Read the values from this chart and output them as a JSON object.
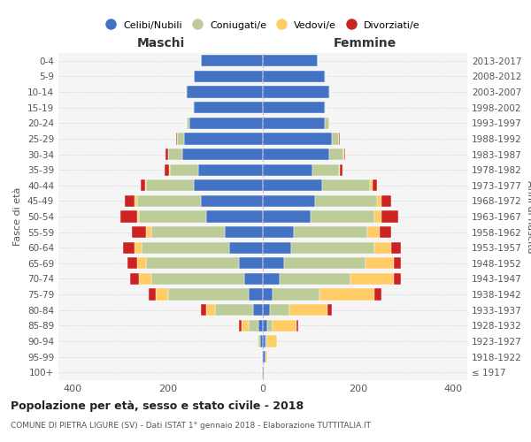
{
  "age_groups": [
    "100+",
    "95-99",
    "90-94",
    "85-89",
    "80-84",
    "75-79",
    "70-74",
    "65-69",
    "60-64",
    "55-59",
    "50-54",
    "45-49",
    "40-44",
    "35-39",
    "30-34",
    "25-29",
    "20-24",
    "15-19",
    "10-14",
    "5-9",
    "0-4"
  ],
  "birth_years": [
    "≤ 1917",
    "1918-1922",
    "1923-1927",
    "1928-1932",
    "1933-1937",
    "1938-1942",
    "1943-1947",
    "1948-1952",
    "1953-1957",
    "1958-1962",
    "1963-1967",
    "1968-1972",
    "1973-1977",
    "1978-1982",
    "1983-1987",
    "1988-1992",
    "1993-1997",
    "1998-2002",
    "2003-2007",
    "2008-2012",
    "2013-2017"
  ],
  "males": {
    "celibi": [
      2,
      2,
      5,
      10,
      20,
      30,
      40,
      50,
      70,
      80,
      120,
      130,
      145,
      135,
      170,
      165,
      155,
      145,
      160,
      145,
      130
    ],
    "coniugati": [
      0,
      0,
      5,
      20,
      80,
      170,
      195,
      195,
      185,
      155,
      140,
      135,
      100,
      60,
      30,
      15,
      5,
      2,
      2,
      0,
      0
    ],
    "vedovi": [
      0,
      0,
      2,
      15,
      20,
      25,
      25,
      20,
      15,
      10,
      5,
      5,
      2,
      2,
      0,
      0,
      0,
      0,
      0,
      0,
      0
    ],
    "divorziati": [
      0,
      0,
      0,
      5,
      10,
      15,
      20,
      20,
      25,
      30,
      35,
      20,
      10,
      10,
      5,
      2,
      0,
      0,
      0,
      0,
      0
    ]
  },
  "females": {
    "nubili": [
      2,
      5,
      5,
      10,
      15,
      20,
      35,
      45,
      60,
      65,
      100,
      110,
      125,
      105,
      140,
      145,
      130,
      130,
      140,
      130,
      115
    ],
    "coniugate": [
      0,
      0,
      5,
      10,
      40,
      100,
      150,
      170,
      175,
      155,
      135,
      130,
      100,
      55,
      30,
      15,
      10,
      2,
      2,
      2,
      0
    ],
    "vedove": [
      2,
      5,
      20,
      50,
      80,
      115,
      90,
      60,
      35,
      25,
      15,
      10,
      5,
      2,
      2,
      0,
      0,
      0,
      0,
      0,
      0
    ],
    "divorziate": [
      0,
      0,
      0,
      5,
      10,
      15,
      15,
      15,
      20,
      25,
      35,
      20,
      10,
      5,
      2,
      2,
      0,
      0,
      0,
      0,
      0
    ]
  },
  "colors": {
    "celibi_nubili": "#4472C4",
    "coniugati": "#BBCC99",
    "vedovi": "#FFCC66",
    "divorziati": "#CC2222"
  },
  "title": "Popolazione per età, sesso e stato civile - 2018",
  "subtitle": "COMUNE DI PIETRA LIGURE (SV) - Dati ISTAT 1° gennaio 2018 - Elaborazione TUTTITALIA.IT",
  "xlabel_left": "Maschi",
  "xlabel_right": "Femmine",
  "ylabel_left": "Fasce di età",
  "ylabel_right": "Anni di nascita",
  "xlim": 430,
  "legend_labels": [
    "Celibi/Nubili",
    "Coniugati/e",
    "Vedovi/e",
    "Divorziati/e"
  ],
  "background_color": "#ffffff",
  "grid_color": "#cccccc"
}
